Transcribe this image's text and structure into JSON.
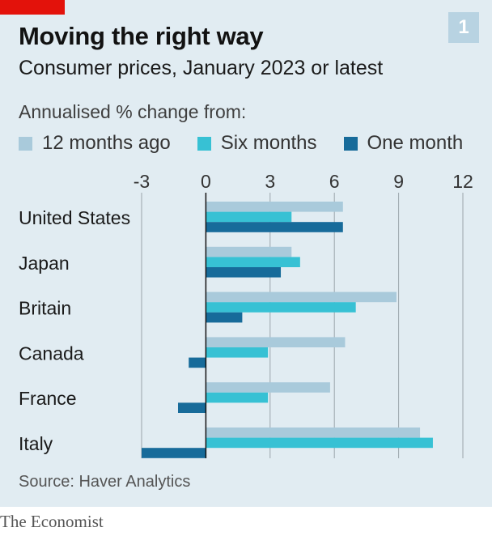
{
  "header": {
    "title": "Moving the right way",
    "subtitle": "Consumer prices, January 2023 or latest",
    "badge": "1"
  },
  "legend_title": "Annualised % change from:",
  "source": "Source: Haver Analytics",
  "brand": "The Economist",
  "colors": {
    "background": "#e1ecf2",
    "brand_red": "#e3120b",
    "series_12m": "#a9cadb",
    "series_6m": "#37c1d4",
    "series_1m": "#176b9a",
    "grid": "#9aa5ab",
    "zero_line": "#121212"
  },
  "chart_data": {
    "type": "bar",
    "orientation": "horizontal",
    "categories": [
      "United States",
      "Japan",
      "Britain",
      "Canada",
      "France",
      "Italy"
    ],
    "series": [
      {
        "name": "12 months ago",
        "color": "#a9cadb",
        "values": [
          6.4,
          4.0,
          8.9,
          6.5,
          5.8,
          10.0
        ]
      },
      {
        "name": "Six months",
        "color": "#37c1d4",
        "values": [
          4.0,
          4.4,
          7.0,
          2.9,
          2.9,
          10.6
        ]
      },
      {
        "name": "One month",
        "color": "#176b9a",
        "values": [
          6.4,
          3.5,
          1.7,
          -0.8,
          -1.3,
          -3.0
        ]
      }
    ],
    "xlim": [
      -3,
      12
    ],
    "xticks": [
      "-3",
      "0",
      "3",
      "6",
      "9",
      "12"
    ],
    "xtick_values": [
      -3,
      0,
      3,
      6,
      9,
      12
    ],
    "grid": true,
    "legend_position": "top"
  }
}
